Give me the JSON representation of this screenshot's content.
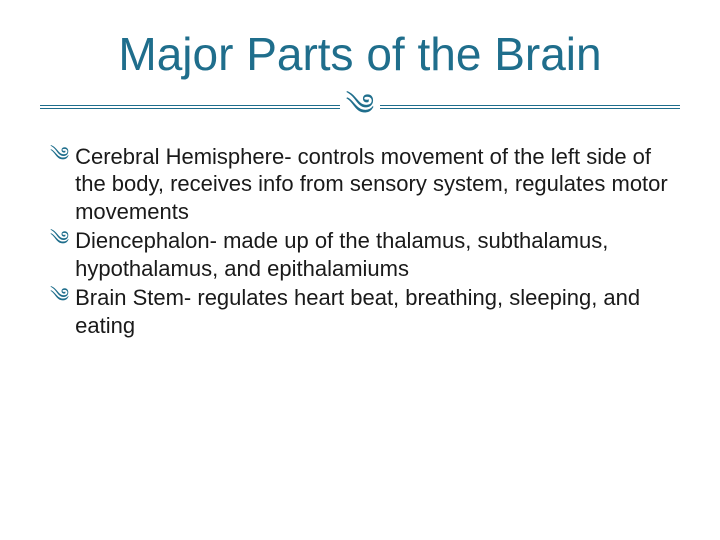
{
  "colors": {
    "title": "#1f6e8c",
    "accent": "#1f6e8c",
    "body_text": "#1a1a1a",
    "divider": "#1f6e8c",
    "background": "#ffffff"
  },
  "typography": {
    "title_fontsize": 46,
    "body_fontsize": 22,
    "flourish_fontsize": 30,
    "bullet_icon_fontsize": 20,
    "title_weight": 400,
    "body_weight": 400
  },
  "divider": {
    "line_width": 1,
    "double_gap": 3,
    "glyph": "༄"
  },
  "title": "Major Parts of the Brain",
  "bullet_glyph": "༄",
  "bullets": [
    "Cerebral Hemisphere- controls movement of the left side of the body, receives info from sensory system, regulates motor movements",
    "Diencephalon- made up of the thalamus, subthalamus, hypothalamus, and epithalamiums",
    "Brain Stem- regulates heart beat, breathing, sleeping, and eating"
  ]
}
